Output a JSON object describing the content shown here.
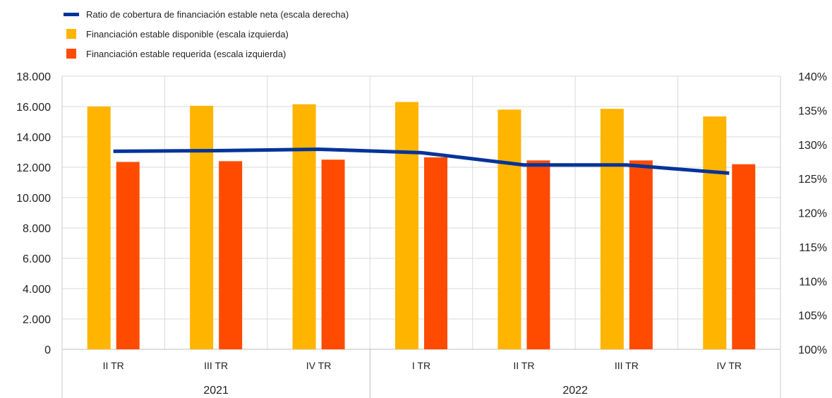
{
  "legend": {
    "line": "Ratio de cobertura de financiación estable neta (escala derecha)",
    "bar1": "Financiación estable disponible (escala izquierda)",
    "bar2": "Financiación estable requerida (escala izquierda)"
  },
  "colors": {
    "line": "#003399",
    "bar1": "#FFB400",
    "bar2": "#FF4B00",
    "grid": "#d9d9d9"
  },
  "chart_data": {
    "type": "bar",
    "categories": [
      "II TR",
      "III TR",
      "IV TR",
      "I TR",
      "II TR",
      "III TR",
      "IV TR"
    ],
    "groups": [
      {
        "label": "2021",
        "count": 3
      },
      {
        "label": "2022",
        "count": 4
      }
    ],
    "series": [
      {
        "name": "Financiación estable disponible (escala izquierda)",
        "axis": "left",
        "type": "bar",
        "values": [
          16000,
          16050,
          16150,
          16300,
          15800,
          15850,
          15350
        ]
      },
      {
        "name": "Financiación estable requerida (escala izquierda)",
        "axis": "left",
        "type": "bar",
        "values": [
          12350,
          12400,
          12500,
          12650,
          12450,
          12450,
          12200
        ]
      },
      {
        "name": "Ratio de cobertura de financiación estable neta (escala derecha)",
        "axis": "right",
        "type": "line",
        "values": [
          129.0,
          129.1,
          129.3,
          128.8,
          127.0,
          127.0,
          125.8
        ]
      }
    ],
    "ylim": [
      0,
      18000
    ],
    "yticks": [
      "0",
      "2.000",
      "4.000",
      "6.000",
      "8.000",
      "10.000",
      "12.000",
      "14.000",
      "16.000",
      "18.000"
    ],
    "ylim_right": [
      100,
      140
    ],
    "yticks_right": [
      "100%",
      "105%",
      "110%",
      "115%",
      "120%",
      "125%",
      "130%",
      "135%",
      "140%"
    ],
    "grid": true,
    "legend_position": "top-left"
  }
}
